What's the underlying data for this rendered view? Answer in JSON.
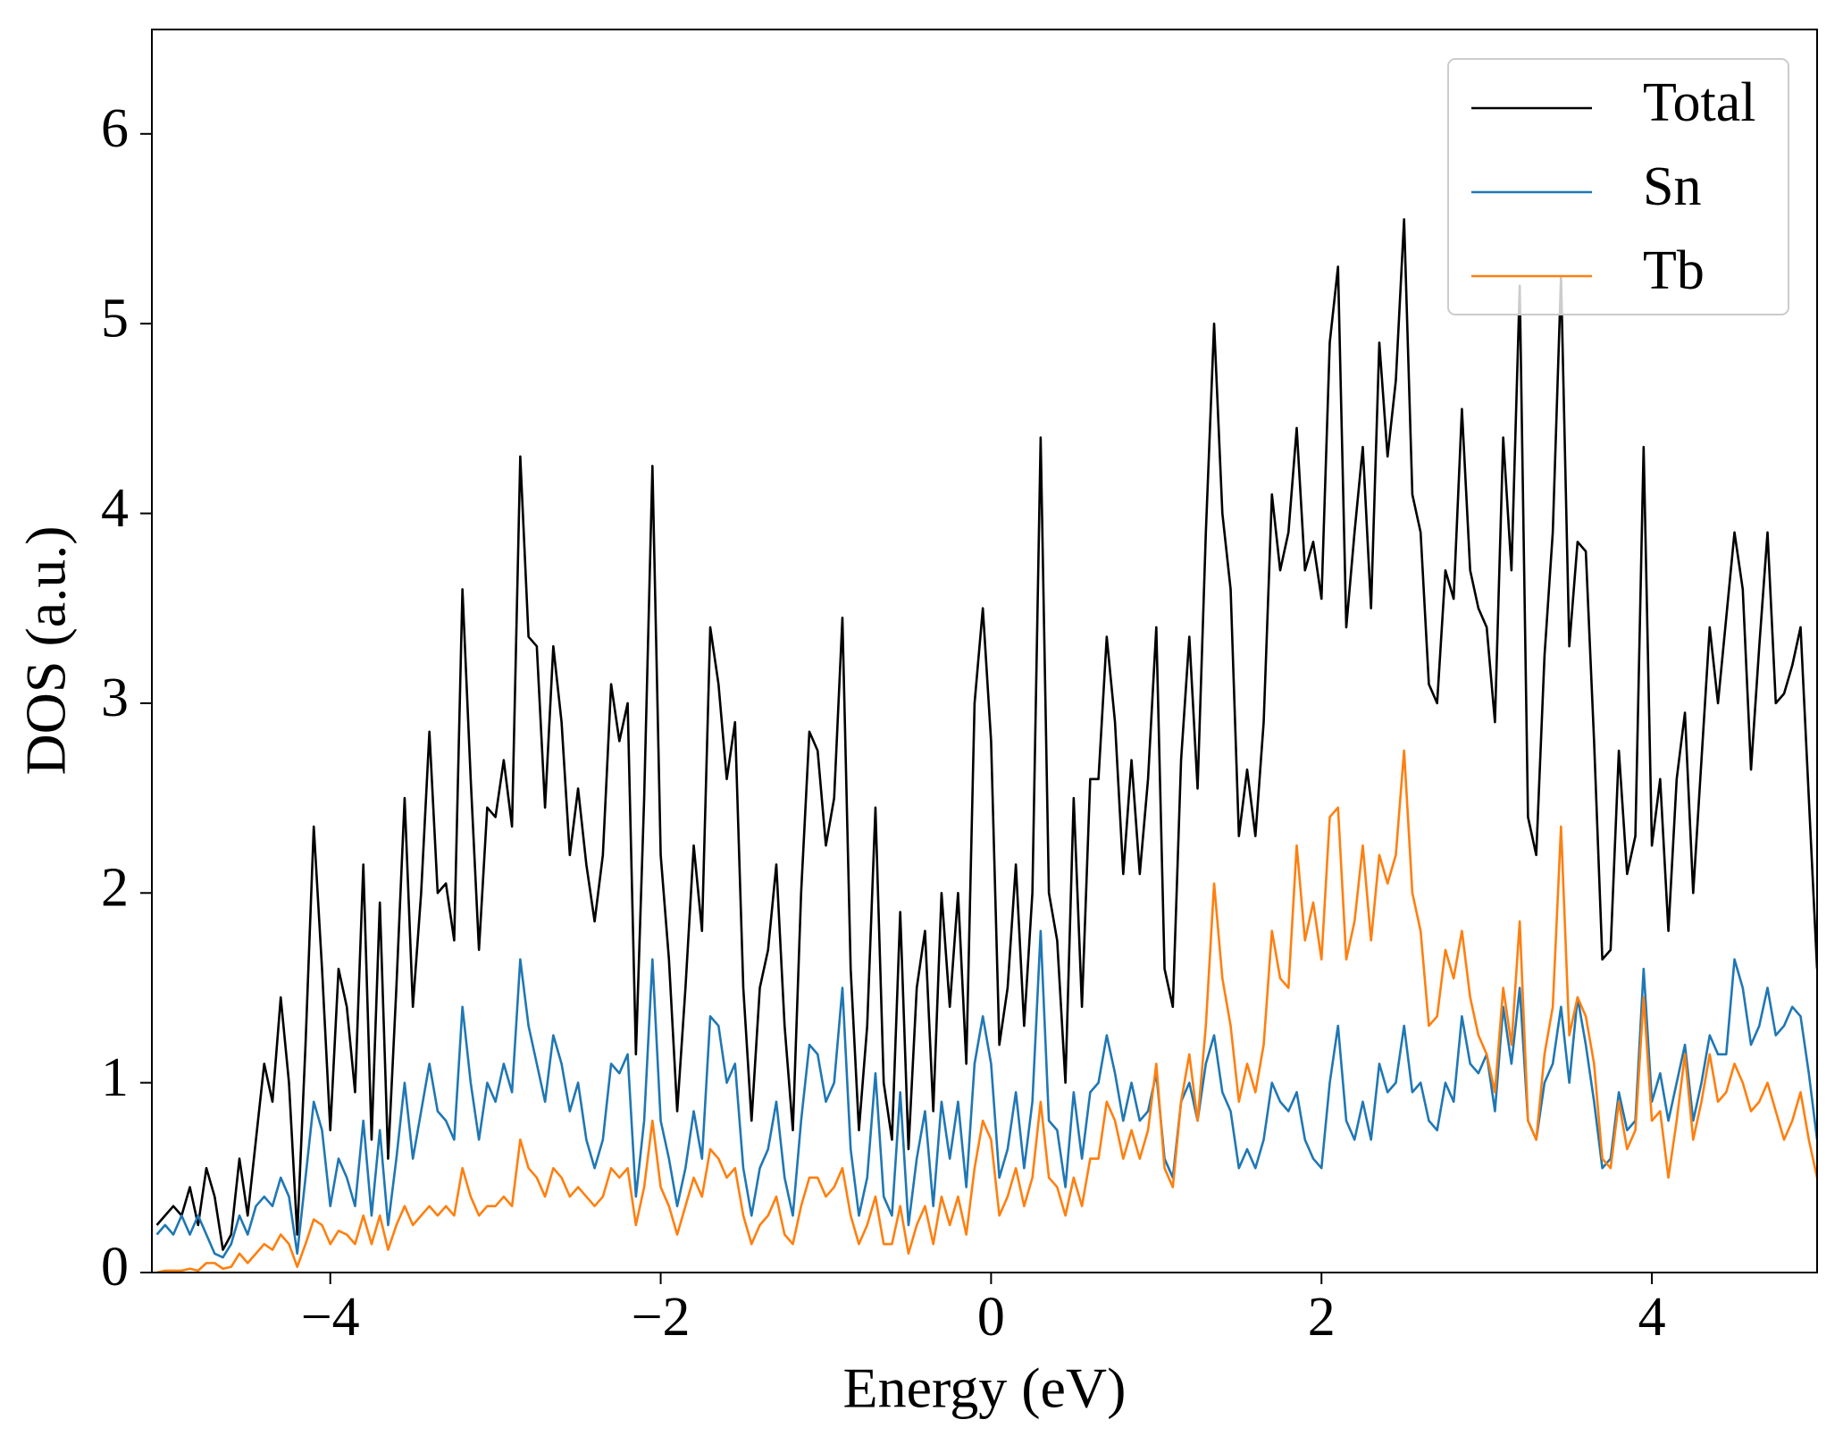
{
  "chart_data": {
    "type": "line",
    "xlabel": "Energy (eV)",
    "ylabel": "DOS (a.u.)",
    "xlim": [
      -5.08,
      5
    ],
    "ylim": [
      0,
      6.55
    ],
    "xticks": [
      {
        "value": -4,
        "label": "−4"
      },
      {
        "value": -2,
        "label": "−2"
      },
      0,
      2,
      4
    ],
    "yticks": [
      0,
      1,
      2,
      3,
      4,
      5,
      6
    ],
    "legend": "upper right",
    "x": [
      -5.05,
      -5.0,
      -4.95,
      -4.9,
      -4.85,
      -4.8,
      -4.75,
      -4.7,
      -4.65,
      -4.6,
      -4.55,
      -4.5,
      -4.45,
      -4.4,
      -4.35,
      -4.3,
      -4.25,
      -4.2,
      -4.15,
      -4.1,
      -4.05,
      -4.0,
      -3.95,
      -3.9,
      -3.85,
      -3.8,
      -3.75,
      -3.7,
      -3.65,
      -3.6,
      -3.55,
      -3.5,
      -3.45,
      -3.4,
      -3.35,
      -3.3,
      -3.25,
      -3.2,
      -3.15,
      -3.1,
      -3.05,
      -3.0,
      -2.95,
      -2.9,
      -2.85,
      -2.8,
      -2.75,
      -2.7,
      -2.65,
      -2.6,
      -2.55,
      -2.5,
      -2.45,
      -2.4,
      -2.35,
      -2.3,
      -2.25,
      -2.2,
      -2.15,
      -2.1,
      -2.05,
      -2.0,
      -1.95,
      -1.9,
      -1.85,
      -1.8,
      -1.75,
      -1.7,
      -1.65,
      -1.6,
      -1.55,
      -1.5,
      -1.45,
      -1.4,
      -1.35,
      -1.3,
      -1.25,
      -1.2,
      -1.15,
      -1.1,
      -1.05,
      -1.0,
      -0.95,
      -0.9,
      -0.85,
      -0.8,
      -0.75,
      -0.7,
      -0.65,
      -0.6,
      -0.55,
      -0.5,
      -0.45,
      -0.4,
      -0.35,
      -0.3,
      -0.25,
      -0.2,
      -0.15,
      -0.1,
      -0.05,
      0.0,
      0.05,
      0.1,
      0.15,
      0.2,
      0.25,
      0.3,
      0.35,
      0.4,
      0.45,
      0.5,
      0.55,
      0.6,
      0.65,
      0.7,
      0.75,
      0.8,
      0.85,
      0.9,
      0.95,
      1.0,
      1.05,
      1.1,
      1.15,
      1.2,
      1.25,
      1.3,
      1.35,
      1.4,
      1.45,
      1.5,
      1.55,
      1.6,
      1.65,
      1.7,
      1.75,
      1.8,
      1.85,
      1.9,
      1.95,
      2.0,
      2.05,
      2.1,
      2.15,
      2.2,
      2.25,
      2.3,
      2.35,
      2.4,
      2.45,
      2.5,
      2.55,
      2.6,
      2.65,
      2.7,
      2.75,
      2.8,
      2.85,
      2.9,
      2.95,
      3.0,
      3.05,
      3.1,
      3.15,
      3.2,
      3.25,
      3.3,
      3.35,
      3.4,
      3.45,
      3.5,
      3.55,
      3.6,
      3.65,
      3.7,
      3.75,
      3.8,
      3.85,
      3.9,
      3.95,
      4.0,
      4.05,
      4.1,
      4.15,
      4.2,
      4.25,
      4.3,
      4.35,
      4.4,
      4.45,
      4.5,
      4.55,
      4.6,
      4.65,
      4.7,
      4.75,
      4.8,
      4.85,
      4.9,
      4.95,
      5.0
    ],
    "series": [
      {
        "name": "Total",
        "color": "#000000",
        "values": [
          0.25,
          0.3,
          0.35,
          0.3,
          0.45,
          0.25,
          0.55,
          0.4,
          0.12,
          0.2,
          0.6,
          0.3,
          0.7,
          1.1,
          0.9,
          1.45,
          1.0,
          0.2,
          1.2,
          2.35,
          1.6,
          0.75,
          1.6,
          1.4,
          0.95,
          2.15,
          0.7,
          1.95,
          0.6,
          1.5,
          2.5,
          1.4,
          2.0,
          2.85,
          2.0,
          2.05,
          1.75,
          3.6,
          2.6,
          1.7,
          2.45,
          2.4,
          2.7,
          2.35,
          4.3,
          3.35,
          3.3,
          2.45,
          3.3,
          2.9,
          2.2,
          2.55,
          2.15,
          1.85,
          2.2,
          3.1,
          2.8,
          3.0,
          1.15,
          2.5,
          4.25,
          2.2,
          1.65,
          0.85,
          1.5,
          2.25,
          1.8,
          3.4,
          3.1,
          2.6,
          2.9,
          1.5,
          0.8,
          1.5,
          1.7,
          2.15,
          1.3,
          0.75,
          2.0,
          2.85,
          2.75,
          2.25,
          2.5,
          3.45,
          1.6,
          0.75,
          1.3,
          2.45,
          1.0,
          0.7,
          1.9,
          0.65,
          1.5,
          1.8,
          0.85,
          2.0,
          1.4,
          2.0,
          1.1,
          3.0,
          3.5,
          2.8,
          1.2,
          1.5,
          2.15,
          1.3,
          2.0,
          4.4,
          2.0,
          1.75,
          1.0,
          2.5,
          1.4,
          2.6,
          2.6,
          3.35,
          2.9,
          2.1,
          2.7,
          2.1,
          2.6,
          3.4,
          1.6,
          1.4,
          2.7,
          3.35,
          2.55,
          3.9,
          5.0,
          4.0,
          3.6,
          2.3,
          2.65,
          2.3,
          2.9,
          4.1,
          3.7,
          3.9,
          4.45,
          3.7,
          3.85,
          3.55,
          4.9,
          5.3,
          3.4,
          3.9,
          4.35,
          3.5,
          4.9,
          4.3,
          4.7,
          5.55,
          4.1,
          3.9,
          3.1,
          3.0,
          3.7,
          3.55,
          4.55,
          3.7,
          3.5,
          3.4,
          2.9,
          4.4,
          3.7,
          5.2,
          2.4,
          2.2,
          3.25,
          3.9,
          5.25,
          3.3,
          3.85,
          3.8,
          2.8,
          1.65,
          1.7,
          2.75,
          2.1,
          2.3,
          4.35,
          2.25,
          2.6,
          1.8,
          2.6,
          2.95,
          2.0,
          2.7,
          3.4,
          3.0,
          3.45,
          3.9,
          3.6,
          2.65,
          3.3,
          3.9,
          3.0,
          3.05,
          3.2,
          3.4,
          2.5,
          1.6
        ]
      },
      {
        "name": "Sn",
        "color": "#1f77b4",
        "values": [
          0.2,
          0.25,
          0.2,
          0.3,
          0.2,
          0.3,
          0.2,
          0.1,
          0.08,
          0.15,
          0.3,
          0.2,
          0.35,
          0.4,
          0.35,
          0.5,
          0.4,
          0.1,
          0.5,
          0.9,
          0.75,
          0.35,
          0.6,
          0.5,
          0.35,
          0.8,
          0.3,
          0.75,
          0.25,
          0.6,
          1.0,
          0.6,
          0.85,
          1.1,
          0.85,
          0.8,
          0.7,
          1.4,
          1.0,
          0.7,
          1.0,
          0.9,
          1.1,
          0.95,
          1.65,
          1.3,
          1.1,
          0.9,
          1.25,
          1.1,
          0.85,
          1.0,
          0.7,
          0.55,
          0.7,
          1.1,
          1.05,
          1.15,
          0.4,
          0.8,
          1.65,
          0.8,
          0.6,
          0.35,
          0.55,
          0.85,
          0.6,
          1.35,
          1.3,
          1.0,
          1.1,
          0.55,
          0.3,
          0.55,
          0.65,
          0.9,
          0.5,
          0.3,
          0.8,
          1.2,
          1.15,
          0.9,
          1.0,
          1.5,
          0.65,
          0.3,
          0.5,
          1.05,
          0.4,
          0.3,
          0.95,
          0.25,
          0.6,
          0.85,
          0.35,
          0.9,
          0.6,
          0.9,
          0.45,
          1.1,
          1.35,
          1.1,
          0.5,
          0.65,
          0.95,
          0.55,
          0.9,
          1.8,
          0.8,
          0.75,
          0.45,
          0.95,
          0.6,
          0.95,
          1.0,
          1.25,
          1.05,
          0.8,
          1.0,
          0.8,
          0.85,
          1.05,
          0.6,
          0.5,
          0.9,
          1.0,
          0.8,
          1.1,
          1.25,
          0.95,
          0.85,
          0.55,
          0.65,
          0.55,
          0.7,
          1.0,
          0.9,
          0.85,
          0.95,
          0.7,
          0.6,
          0.55,
          1.0,
          1.3,
          0.8,
          0.7,
          0.9,
          0.7,
          1.1,
          0.95,
          1.0,
          1.3,
          0.95,
          1.0,
          0.8,
          0.75,
          1.0,
          0.9,
          1.35,
          1.1,
          1.05,
          1.15,
          0.85,
          1.4,
          1.1,
          1.5,
          0.8,
          0.7,
          1.0,
          1.1,
          1.4,
          1.0,
          1.45,
          1.2,
          0.9,
          0.55,
          0.6,
          0.95,
          0.75,
          0.8,
          1.6,
          0.9,
          1.05,
          0.8,
          1.0,
          1.2,
          0.8,
          1.0,
          1.25,
          1.15,
          1.15,
          1.65,
          1.5,
          1.2,
          1.3,
          1.5,
          1.25,
          1.3,
          1.4,
          1.35,
          1.05,
          0.7
        ]
      },
      {
        "name": "Tb",
        "color": "#ff7f0e",
        "values": [
          0.0,
          0.01,
          0.01,
          0.01,
          0.02,
          0.01,
          0.05,
          0.05,
          0.02,
          0.03,
          0.1,
          0.05,
          0.1,
          0.15,
          0.12,
          0.2,
          0.15,
          0.03,
          0.15,
          0.28,
          0.25,
          0.15,
          0.22,
          0.2,
          0.15,
          0.3,
          0.15,
          0.3,
          0.12,
          0.25,
          0.35,
          0.25,
          0.3,
          0.35,
          0.3,
          0.35,
          0.3,
          0.55,
          0.4,
          0.3,
          0.35,
          0.35,
          0.4,
          0.35,
          0.7,
          0.55,
          0.5,
          0.4,
          0.55,
          0.5,
          0.4,
          0.45,
          0.4,
          0.35,
          0.4,
          0.55,
          0.5,
          0.55,
          0.25,
          0.45,
          0.8,
          0.45,
          0.35,
          0.2,
          0.35,
          0.5,
          0.4,
          0.65,
          0.6,
          0.5,
          0.55,
          0.3,
          0.15,
          0.25,
          0.3,
          0.4,
          0.2,
          0.15,
          0.35,
          0.5,
          0.5,
          0.4,
          0.45,
          0.55,
          0.3,
          0.15,
          0.25,
          0.4,
          0.15,
          0.15,
          0.35,
          0.1,
          0.25,
          0.35,
          0.15,
          0.4,
          0.25,
          0.4,
          0.2,
          0.55,
          0.8,
          0.7,
          0.3,
          0.4,
          0.55,
          0.35,
          0.5,
          0.9,
          0.5,
          0.45,
          0.3,
          0.5,
          0.35,
          0.6,
          0.6,
          0.9,
          0.8,
          0.6,
          0.75,
          0.6,
          0.75,
          1.1,
          0.55,
          0.45,
          0.9,
          1.15,
          0.8,
          1.3,
          2.05,
          1.55,
          1.3,
          0.9,
          1.1,
          0.95,
          1.2,
          1.8,
          1.55,
          1.5,
          2.25,
          1.75,
          1.95,
          1.65,
          2.4,
          2.45,
          1.65,
          1.85,
          2.25,
          1.75,
          2.2,
          2.05,
          2.2,
          2.75,
          2.0,
          1.8,
          1.3,
          1.35,
          1.7,
          1.55,
          1.8,
          1.45,
          1.25,
          1.15,
          0.95,
          1.5,
          1.2,
          1.85,
          0.8,
          0.7,
          1.15,
          1.4,
          2.35,
          1.25,
          1.45,
          1.35,
          1.1,
          0.6,
          0.55,
          0.9,
          0.65,
          0.75,
          1.45,
          0.8,
          0.85,
          0.5,
          0.8,
          1.15,
          0.7,
          0.9,
          1.15,
          0.9,
          0.95,
          1.1,
          1.0,
          0.85,
          0.9,
          1.0,
          0.85,
          0.7,
          0.8,
          0.95,
          0.7,
          0.5
        ]
      }
    ]
  }
}
